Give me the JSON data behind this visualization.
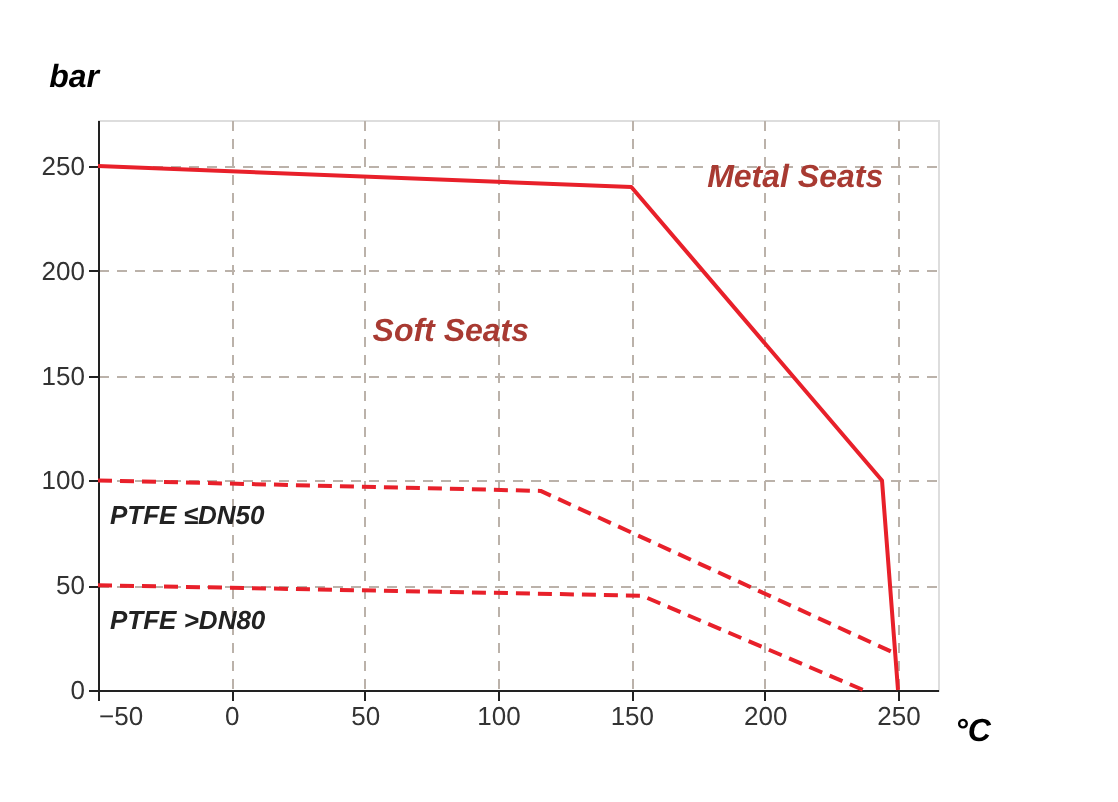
{
  "chart_data": {
    "type": "line",
    "xlabel": "°C",
    "ylabel": "bar",
    "series": [
      {
        "color": "#e8202a",
        "line_style": "solid",
        "x": [
          -50,
          150,
          244,
          250
        ],
        "values": [
          250,
          240,
          100,
          0
        ]
      },
      {
        "name": "PTFE ≤DN50",
        "color": "#e8202a",
        "line_style": "dashed",
        "x": [
          -50,
          116,
          248
        ],
        "values": [
          100,
          95,
          18
        ]
      },
      {
        "name": "PTFE >DN80",
        "color": "#e8202a",
        "line_style": "dashed",
        "x": [
          -50,
          154,
          237
        ],
        "values": [
          50,
          45,
          0
        ]
      }
    ],
    "annotations": [
      "Soft Seats",
      "Metal Seats"
    ],
    "xlim": [
      -50,
      265
    ],
    "ylim": [
      0,
      272
    ],
    "xticks": [
      -50,
      0,
      50,
      100,
      150,
      200,
      250
    ],
    "yticks": [
      0,
      50,
      100,
      150,
      200,
      250
    ],
    "grid": true,
    "legend": false
  }
}
